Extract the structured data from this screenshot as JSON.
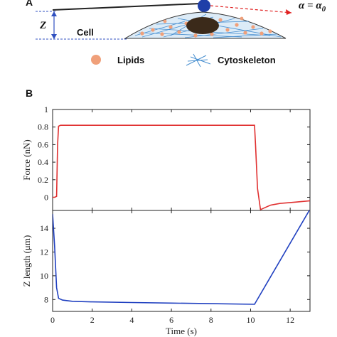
{
  "panel_a": {
    "label": "A",
    "z_label": "Z",
    "alpha_text": "α = α",
    "alpha_sub": "0",
    "cell_label": "Cell",
    "legend": [
      {
        "label": "Lipids",
        "icon": "lipid-droplet-icon"
      },
      {
        "label": "Cytoskeleton",
        "icon": "cytoskeleton-icon"
      }
    ],
    "colors": {
      "lipid": "#f0a07a",
      "cytoskeleton": "#4a90d0",
      "nucleus": "#3b2a1a",
      "probe": "#1f3fa8",
      "alpha_arrow": "#e02020",
      "z_arrow": "#3050c0"
    }
  },
  "panel_b": {
    "label": "B",
    "xlabel": "Time (s)"
  },
  "chart_data": [
    {
      "type": "line",
      "title": "",
      "xlabel": "",
      "ylabel": "Force (nN)",
      "xlim": [
        0,
        13
      ],
      "ylim": [
        -0.15,
        1.0
      ],
      "yticks": [
        0,
        0.2,
        0.4,
        0.6,
        0.8,
        1
      ],
      "ytick_labels": [
        "0",
        "0.2",
        "0.4",
        "0.6",
        "0.8",
        "1"
      ],
      "grid": false,
      "series": [
        {
          "color": "#e03030",
          "x": [
            0,
            0.1,
            0.2,
            0.25,
            0.3,
            0.4,
            1,
            3,
            5,
            7,
            9,
            10.2,
            10.25,
            10.35,
            10.5,
            10.7,
            11,
            11.5,
            12,
            12.5,
            13
          ],
          "y": [
            0,
            0,
            0.01,
            0.6,
            0.81,
            0.82,
            0.82,
            0.82,
            0.82,
            0.82,
            0.82,
            0.82,
            0.6,
            0.1,
            -0.14,
            -0.12,
            -0.09,
            -0.07,
            -0.06,
            -0.05,
            -0.04
          ]
        }
      ]
    },
    {
      "type": "line",
      "title": "",
      "xlabel": "Time (s)",
      "ylabel": "Z length (μm)",
      "xlim": [
        0,
        13
      ],
      "ylim": [
        7,
        15.5
      ],
      "xticks": [
        0,
        2,
        4,
        6,
        8,
        10,
        12
      ],
      "xtick_labels": [
        "0",
        "2",
        "4",
        "6",
        "8",
        "10",
        "12"
      ],
      "yticks": [
        8,
        10,
        12,
        14
      ],
      "ytick_labels": [
        "8",
        "10",
        "12",
        "14"
      ],
      "grid": false,
      "series": [
        {
          "color": "#2040c0",
          "x": [
            0,
            0.1,
            0.2,
            0.3,
            0.5,
            1,
            2,
            4,
            6,
            8,
            10.2,
            13
          ],
          "y": [
            15.2,
            12.5,
            9.0,
            8.1,
            7.95,
            7.85,
            7.8,
            7.75,
            7.7,
            7.65,
            7.6,
            15.6
          ]
        }
      ]
    }
  ]
}
